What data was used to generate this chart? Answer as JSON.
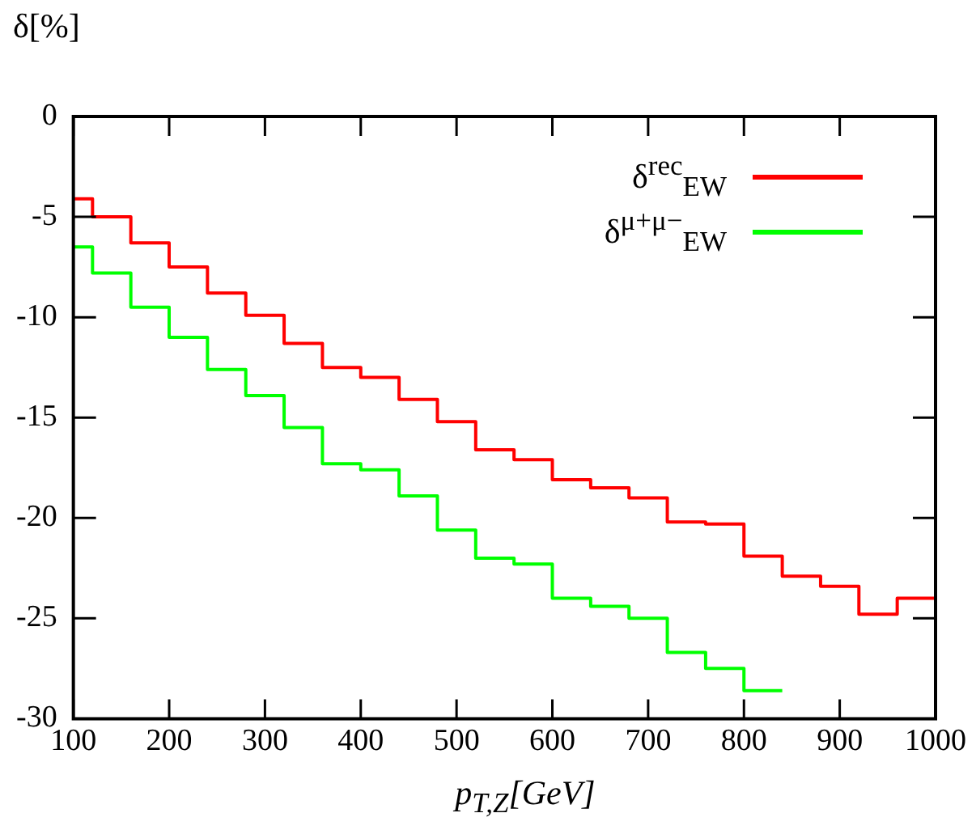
{
  "chart_data": {
    "type": "step",
    "xlabel": "p$_{T,Z}$[GeV]",
    "ylabel": "δ[%]",
    "xlim": [
      100,
      1000
    ],
    "ylim": [
      -30,
      0
    ],
    "xticks": [
      100,
      200,
      300,
      400,
      500,
      600,
      700,
      800,
      900,
      1000
    ],
    "yticks": [
      0,
      -5,
      -10,
      -15,
      -20,
      -25,
      -30
    ],
    "legend": "top right",
    "grid": false,
    "series": [
      {
        "name": "δ$^{rec}$$_{EW}$",
        "color": "#ff0000",
        "x": [
          100,
          120,
          160,
          200,
          240,
          280,
          320,
          360,
          400,
          440,
          480,
          520,
          560,
          600,
          640,
          680,
          720,
          760,
          800,
          840,
          880,
          920,
          960,
          1000
        ],
        "values": [
          -4.1,
          -5.0,
          -6.3,
          -7.5,
          -8.8,
          -9.9,
          -11.3,
          -12.5,
          -13.0,
          -14.1,
          -15.2,
          -16.6,
          -17.1,
          -18.1,
          -18.5,
          -19.0,
          -20.2,
          -20.3,
          -21.9,
          -22.9,
          -23.4,
          -24.8,
          -24.0,
          -24.0
        ]
      },
      {
        "name": "δ$^{μ+μ−}$$_{EW}$",
        "color": "#00ff00",
        "x": [
          100,
          120,
          160,
          200,
          240,
          280,
          320,
          360,
          400,
          440,
          480,
          520,
          560,
          600,
          640,
          680,
          720,
          760,
          800,
          840
        ],
        "values": [
          -6.5,
          -7.8,
          -9.5,
          -11.0,
          -12.6,
          -13.9,
          -15.5,
          -17.3,
          -17.6,
          -18.9,
          -20.6,
          -22.0,
          -22.3,
          -24.0,
          -24.4,
          -25.0,
          -26.7,
          -27.5,
          -28.6,
          -28.6
        ]
      }
    ]
  }
}
